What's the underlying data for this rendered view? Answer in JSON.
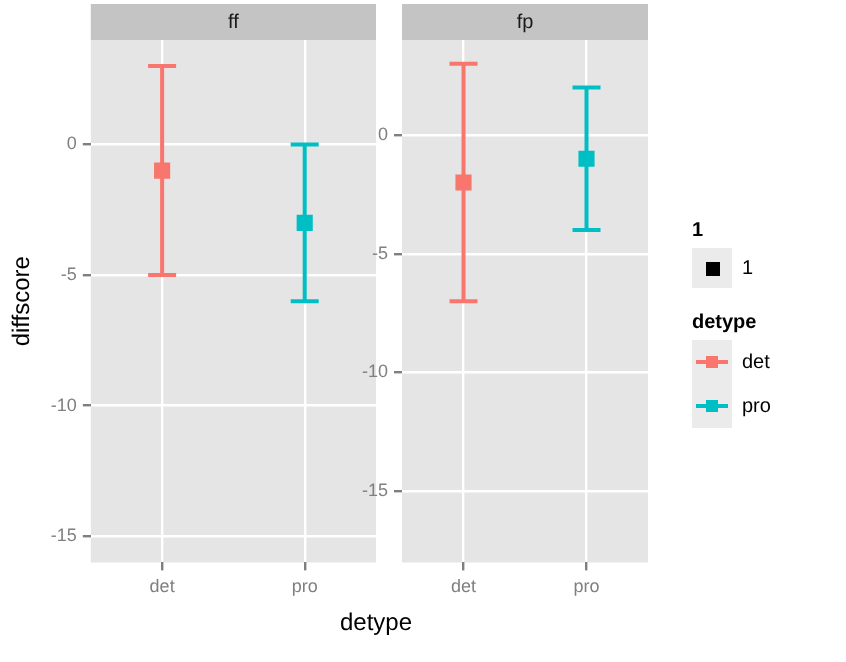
{
  "chart_data": [
    {
      "type": "scatter",
      "title": "ff",
      "xlabel": "detype",
      "ylabel": "diffscore",
      "categories": [
        "det",
        "pro"
      ],
      "marker": "square",
      "grid": true,
      "ylim": [
        -16,
        4
      ],
      "yticks": [
        -15,
        -10,
        -5,
        0
      ],
      "legend": "right",
      "legend_title": "detype",
      "annotations": [
        "1",
        "1"
      ],
      "series": [
        {
          "name": "det",
          "color": "#f8766d",
          "values": [
            -1,
            null
          ],
          "errors": [
            [
              -5,
              3
            ],
            null
          ]
        },
        {
          "name": "pro",
          "color": "#00bfc4",
          "values": [
            null,
            -3
          ],
          "errors": [
            null,
            [
              -6,
              0
            ]
          ]
        }
      ]
    },
    {
      "type": "scatter",
      "title": "fp",
      "categories": [
        "det",
        "pro"
      ],
      "marker": "square",
      "grid": true,
      "ylim": [
        -18,
        4
      ],
      "yticks": [
        -15,
        -10,
        -5,
        0
      ],
      "series": [
        {
          "color": "#f8766d",
          "values": [
            -2,
            null
          ],
          "errors": [
            [
              -7,
              3
            ],
            null
          ]
        },
        {
          "color": "#00bfc4",
          "values": [
            null,
            -1
          ],
          "errors": [
            null,
            [
              -4,
              2
            ]
          ]
        }
      ]
    }
  ]
}
